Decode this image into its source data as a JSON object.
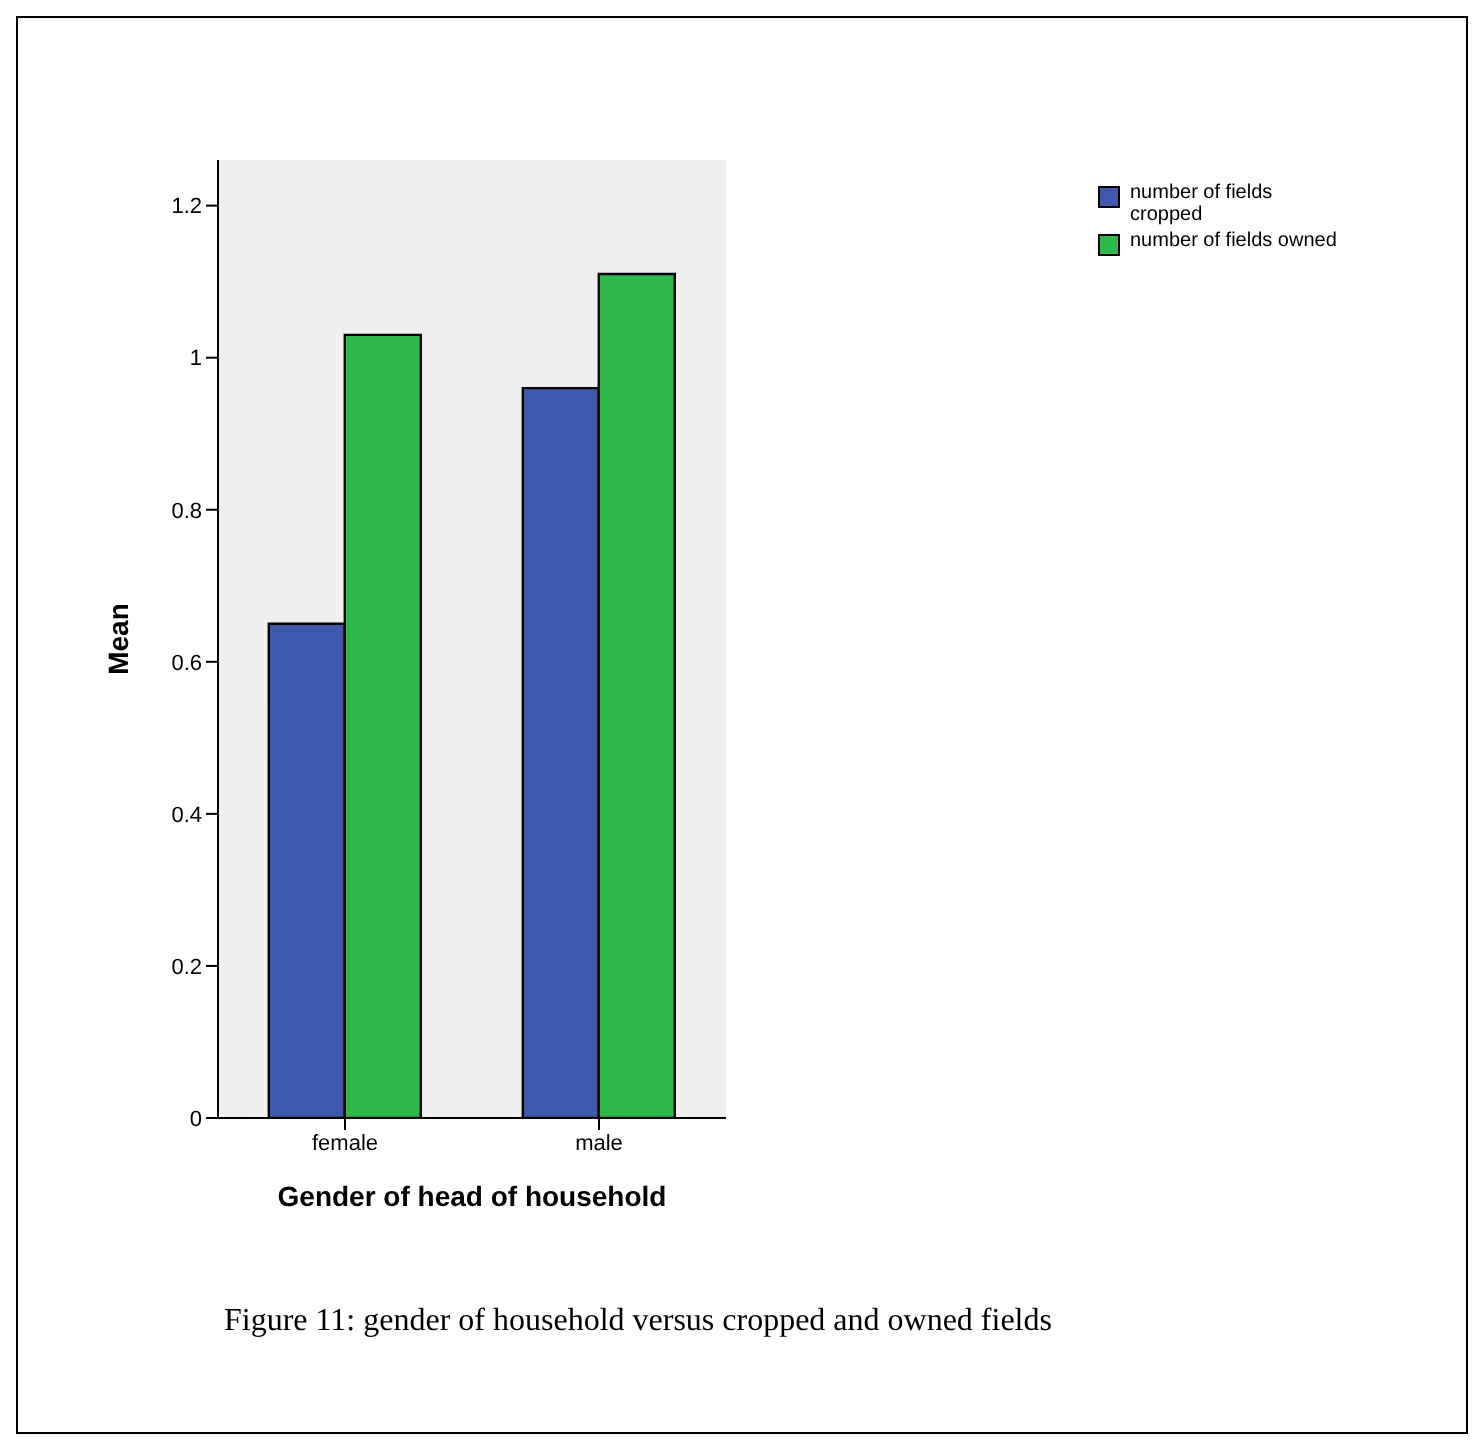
{
  "chart_data": {
    "type": "bar",
    "xlabel": "Gender of head of household",
    "ylabel": "Mean",
    "categories": [
      "female",
      "male"
    ],
    "series": [
      {
        "name": "number of fields cropped",
        "color": "#3e58ab",
        "values": [
          0.65,
          0.96
        ]
      },
      {
        "name": "number of fields owned",
        "color": "#2fb84a",
        "values": [
          1.03,
          1.11
        ]
      }
    ],
    "ylim": [
      0,
      1.26
    ],
    "yticks": [
      0,
      0.2,
      0.4,
      0.6,
      0.8,
      1,
      1.2
    ],
    "grid": false,
    "legend": "top right",
    "annotations": [
      "Figure 11: gender of household versus cropped and owned fields"
    ]
  }
}
